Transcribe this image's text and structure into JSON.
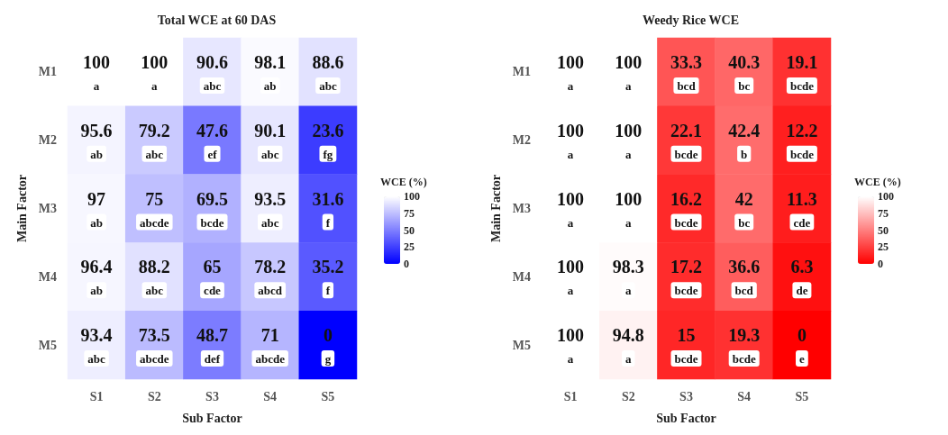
{
  "chart_data": [
    {
      "type": "heatmap",
      "title": "Total WCE at 60 DAS",
      "xlabel": "Sub Factor",
      "ylabel": "Main Factor",
      "clabel": "WCE (%)",
      "categories": [
        "S1",
        "S2",
        "S3",
        "S4",
        "S5"
      ],
      "y_categories": [
        "M1",
        "M2",
        "M3",
        "M4",
        "M5"
      ],
      "cells": [
        [
          100,
          100,
          90.6,
          98.1,
          88.6
        ],
        [
          95.6,
          79.2,
          47.6,
          90.1,
          23.6
        ],
        [
          97,
          75,
          69.5,
          93.5,
          31.6
        ],
        [
          96.4,
          88.2,
          65,
          78.2,
          35.2
        ],
        [
          93.4,
          73.5,
          48.7,
          71,
          0
        ]
      ],
      "cell_labels": [
        [
          "100\na",
          "100\na",
          "90.6\nabc",
          "98.1\nab",
          "88.6\nabc"
        ],
        [
          "95.6\nab",
          "79.2\nabc",
          "47.6\nef",
          "90.1\nabc",
          "23.6\nfg"
        ],
        [
          "97\nab",
          "75\nabcde",
          "69.5\nbcde",
          "93.5\nabc",
          "31.6\nf"
        ],
        [
          "96.4\nab",
          "88.2\nabc",
          "65\ncde",
          "78.2\nabcd",
          "35.2\nf"
        ],
        [
          "93.4\nabc",
          "73.5\nabcde",
          "48.7\ndef",
          "71\nabcde",
          "0\ng"
        ]
      ],
      "colors": [
        "#0000ff",
        "#ffffff"
      ],
      "clim": [
        0,
        100
      ],
      "cticks": [
        0,
        25,
        50,
        75,
        100
      ]
    },
    {
      "type": "heatmap",
      "title": "Weedy Rice WCE",
      "xlabel": "Sub Factor",
      "ylabel": "Main Factor",
      "clabel": "WCE (%)",
      "categories": [
        "S1",
        "S2",
        "S3",
        "S4",
        "S5"
      ],
      "y_categories": [
        "M1",
        "M2",
        "M3",
        "M4",
        "M5"
      ],
      "cells": [
        [
          100,
          100,
          33.3,
          40.3,
          19.1
        ],
        [
          100,
          100,
          22.1,
          42.4,
          12.2
        ],
        [
          100,
          100,
          16.2,
          42,
          11.3
        ],
        [
          100,
          98.3,
          17.2,
          36.6,
          6.3
        ],
        [
          100,
          94.8,
          15,
          19.3,
          0
        ]
      ],
      "cell_labels": [
        [
          "100\na",
          "100\na",
          "33.3\nbcd",
          "40.3\nbc",
          "19.1\nbcde"
        ],
        [
          "100\na",
          "100\na",
          "22.1\nbcde",
          "42.4\nb",
          "12.2\nbcde"
        ],
        [
          "100\na",
          "100\na",
          "16.2\nbcde",
          "42\nbc",
          "11.3\ncde"
        ],
        [
          "100\na",
          "98.3\na",
          "17.2\nbcde",
          "36.6\nbcd",
          "6.3\nde"
        ],
        [
          "100\na",
          "94.8\na",
          "15\nbcde",
          "19.3\nbcde",
          "0\ne"
        ]
      ],
      "colors": [
        "#ff0000",
        "#ffffff"
      ],
      "clim": [
        0,
        100
      ],
      "cticks": [
        0,
        25,
        50,
        75,
        100
      ]
    }
  ]
}
